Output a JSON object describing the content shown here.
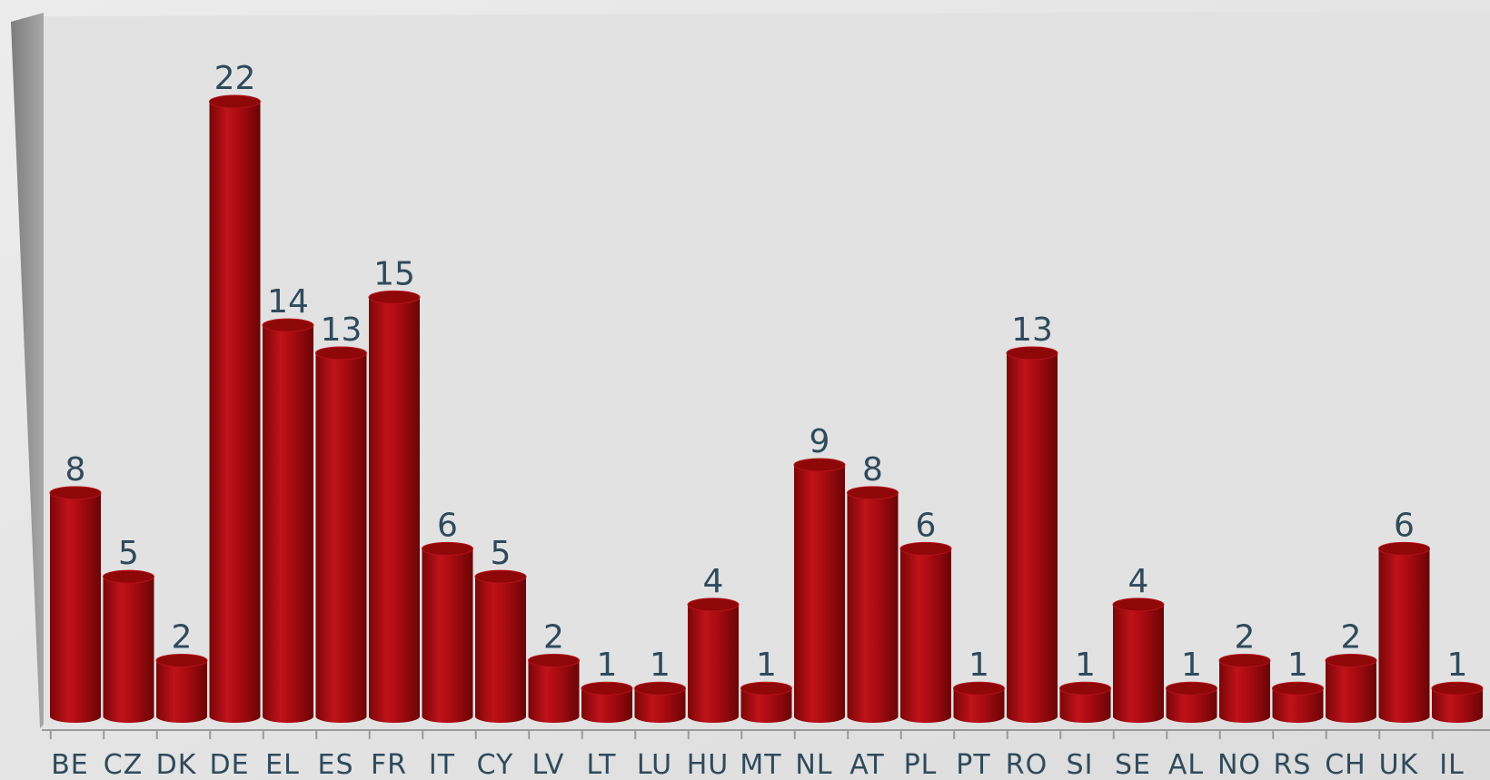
{
  "chart_data": {
    "type": "bar",
    "style": "3d-cylinder",
    "title": "",
    "xlabel": "",
    "ylabel": "",
    "ylim": [
      0,
      22
    ],
    "grid": false,
    "legend": "none",
    "categories": [
      "BE",
      "CZ",
      "DK",
      "DE",
      "EL",
      "ES",
      "FR",
      "IT",
      "CY",
      "LV",
      "LT",
      "LU",
      "HU",
      "MT",
      "NL",
      "AT",
      "PL",
      "PT",
      "RO",
      "SI",
      "SE",
      "AL",
      "NO",
      "RS",
      "CH",
      "UK",
      "IL"
    ],
    "values": [
      8,
      5,
      2,
      22,
      14,
      13,
      15,
      6,
      5,
      2,
      1,
      1,
      4,
      1,
      9,
      8,
      6,
      1,
      13,
      1,
      4,
      1,
      2,
      1,
      2,
      6,
      1
    ],
    "colors": {
      "bar": "#a00a0d",
      "label": "#2f4a5c",
      "background": "#e4e4e4",
      "wall": "#8c8c8c"
    }
  }
}
